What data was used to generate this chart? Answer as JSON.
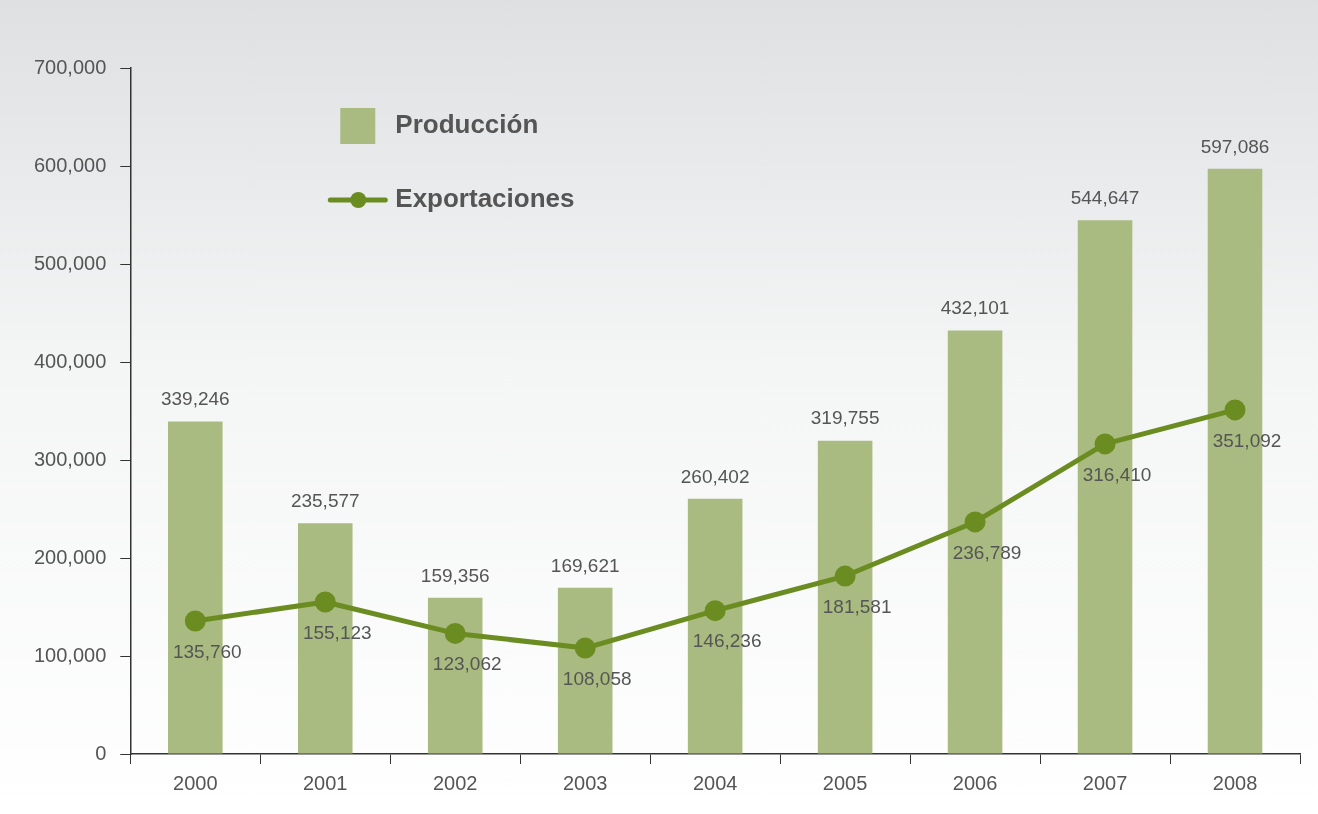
{
  "chart_data": {
    "type": "bar",
    "categories": [
      "2000",
      "2001",
      "2002",
      "2003",
      "2004",
      "2005",
      "2006",
      "2007",
      "2008"
    ],
    "series": [
      {
        "name": "Producción",
        "color": "#a9bb80",
        "values": [
          339246,
          235577,
          159356,
          169621,
          260402,
          319755,
          432101,
          544647,
          597086
        ],
        "value_labels": [
          "339,246",
          "235,577",
          "159,356",
          "169,621",
          "260,402",
          "319,755",
          "432,101",
          "544,647",
          "597,086"
        ]
      },
      {
        "name": "Exportaciones",
        "type": "line",
        "color": "#6b8c21",
        "values": [
          135760,
          155123,
          123062,
          108058,
          146236,
          181581,
          236789,
          316410,
          351092
        ],
        "value_labels": [
          "135,760",
          "155,123",
          "123,062",
          "108,058",
          "146,236",
          "181,581",
          "236,789",
          "316,410",
          "351,092"
        ]
      }
    ],
    "ylim": [
      0,
      700000
    ],
    "yticks": [
      0,
      {
        "value": 100000,
        "label": "100,000"
      },
      {
        "value": 200000,
        "label": "200,000"
      },
      {
        "value": 300000,
        "label": "300,000"
      },
      {
        "value": 400000,
        "label": "400,000"
      },
      {
        "value": 500000,
        "label": "500,000"
      },
      {
        "value": 600000,
        "label": "600,000"
      },
      {
        "value": 700000,
        "label": "700,000"
      }
    ],
    "grid": false,
    "legend": "top left",
    "marker": "circle",
    "line_style": "solid"
  }
}
